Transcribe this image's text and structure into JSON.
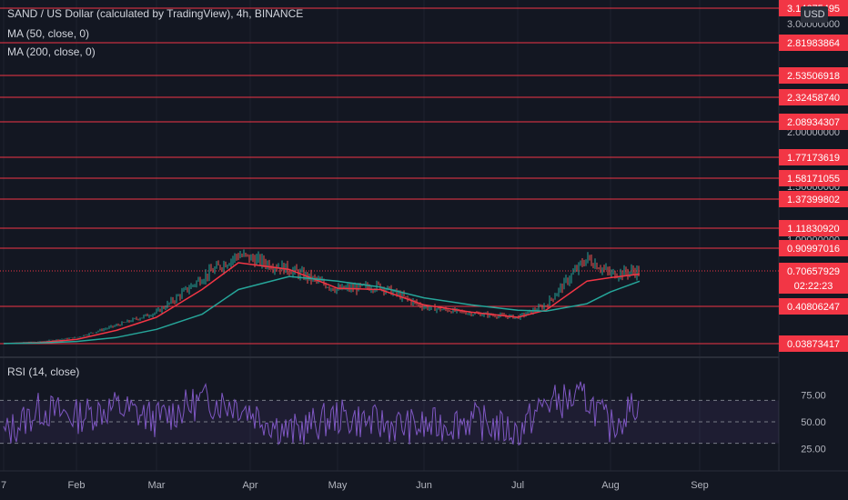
{
  "legend": {
    "symbol_line": "SAND / US Dollar (calculated by TradingView), 4h, BINANCE",
    "ma50": "MA (50, close, 0)",
    "ma200": "MA (200, close, 0)",
    "rsi": "RSI (14, close)"
  },
  "currency_badge": "USD",
  "colors": {
    "background": "#131722",
    "level_line": "#f23645",
    "candle_up": "#26a69a",
    "candle_down": "#ef5350",
    "ma50": "#f23645",
    "ma200": "#26a69a",
    "rsi_line": "#7e57c2",
    "rsi_band": "#7e57c2"
  },
  "chart_data": [
    {
      "type": "line",
      "title": "SAND / US Dollar (calculated by TradingView), 4h, BINANCE",
      "x_tick_labels": [
        "7",
        "Feb",
        "Mar",
        "Apr",
        "May",
        "Jun",
        "Jul",
        "Aug",
        "Sep"
      ],
      "y_axis_visible_ticks": [
        "3.00000000",
        "2.00000000",
        "1.50000000",
        "1.00000000"
      ],
      "horizontal_levels": [
        {
          "value": 3.14675495,
          "label": "3.14675495"
        },
        {
          "value": 2.81983864,
          "label": "2.81983864"
        },
        {
          "value": 2.53506918,
          "label": "2.53506918"
        },
        {
          "value": 2.3245874,
          "label": "2.32458740"
        },
        {
          "value": 2.08934307,
          "label": "2.08934307"
        },
        {
          "value": 1.77173619,
          "label": "1.77173619"
        },
        {
          "value": 1.58171055,
          "label": "1.58171055"
        },
        {
          "value": 1.37399802,
          "label": "1.37399802"
        },
        {
          "value": 1.1183092,
          "label": "1.11830920"
        },
        {
          "value": 0.90997016,
          "label": "0.90997016"
        },
        {
          "value": 0.40806247,
          "label": "0.40806247"
        },
        {
          "value": 0.03873417,
          "label": "0.03873417"
        }
      ],
      "last_price": {
        "value": 0.70657929,
        "label": "0.70657929",
        "countdown": "02:22:23"
      },
      "series": [
        {
          "name": "SAND / US Dollar",
          "x": [
            "7",
            "mid-Jan",
            "Feb",
            "mid-Feb",
            "Mar",
            "mid-Mar",
            "Apr",
            "mid-Apr",
            "May",
            "mid-May",
            "Jun",
            "mid-Jun",
            "Jul",
            "mid-Jul",
            "late-Jul",
            "Aug",
            "mid-Aug"
          ],
          "values": [
            0.04,
            0.06,
            0.1,
            0.22,
            0.35,
            0.65,
            0.85,
            0.72,
            0.55,
            0.58,
            0.4,
            0.34,
            0.3,
            0.42,
            0.82,
            0.68,
            0.71
          ]
        },
        {
          "name": "MA (50, close, 0)",
          "values": [
            0.04,
            0.05,
            0.08,
            0.17,
            0.3,
            0.55,
            0.78,
            0.72,
            0.56,
            0.55,
            0.42,
            0.35,
            0.3,
            0.37,
            0.62,
            0.65,
            0.68
          ]
        },
        {
          "name": "MA (200, close, 0)",
          "values": [
            0.04,
            0.045,
            0.06,
            0.1,
            0.18,
            0.33,
            0.55,
            0.66,
            0.62,
            0.57,
            0.48,
            0.42,
            0.37,
            0.36,
            0.43,
            0.53,
            0.62
          ]
        }
      ]
    },
    {
      "type": "line",
      "title": "RSI (14, close)",
      "y_ticks": [
        75,
        50,
        25
      ],
      "band": [
        30,
        70
      ],
      "midline": 50,
      "series": [
        {
          "name": "RSI (14, close)",
          "x": [
            "7",
            "mid-Jan",
            "Feb",
            "mid-Feb",
            "Mar",
            "mid-Mar",
            "Apr",
            "mid-Apr",
            "May",
            "mid-May",
            "Jun",
            "mid-Jun",
            "Jul",
            "mid-Jul",
            "late-Jul",
            "Aug",
            "mid-Aug"
          ],
          "values": [
            38,
            62,
            55,
            64,
            52,
            70,
            66,
            40,
            55,
            48,
            45,
            52,
            40,
            68,
            72,
            45,
            70
          ]
        }
      ]
    }
  ]
}
